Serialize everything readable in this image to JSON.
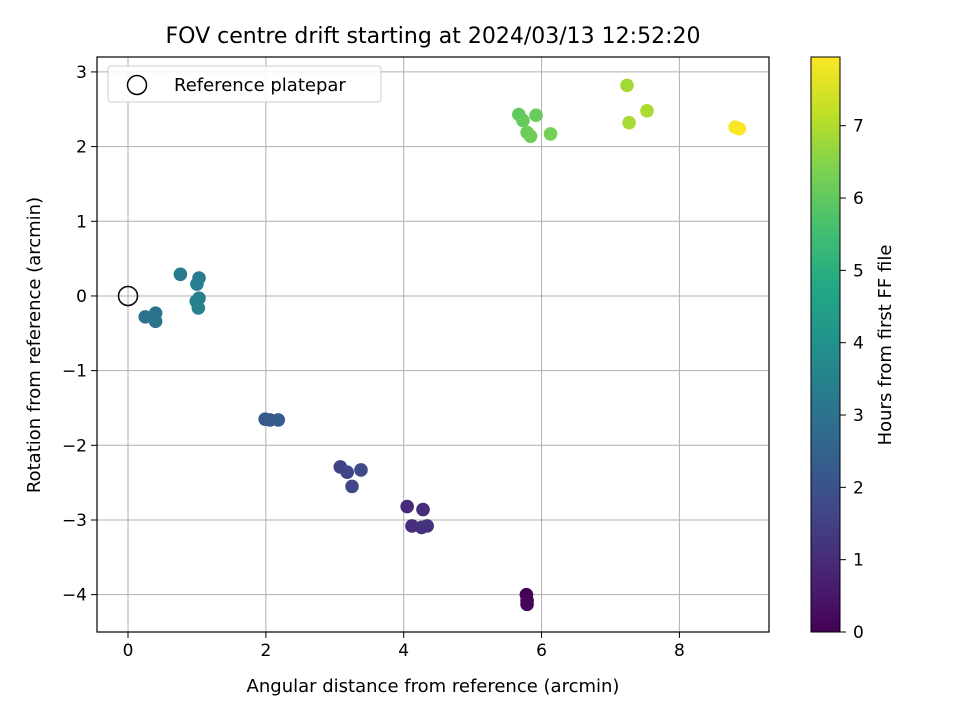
{
  "chart_data": {
    "type": "scatter",
    "title": "FOV centre drift starting at 2024/03/13 12:52:20",
    "xlabel": "Angular distance from reference (arcmin)",
    "ylabel": "Rotation from reference (arcmin)",
    "xlim": [
      -0.45,
      9.3
    ],
    "ylim": [
      -4.5,
      3.2
    ],
    "xticks": [
      0,
      2,
      4,
      6,
      8
    ],
    "yticks": [
      3,
      2,
      1,
      0,
      -1,
      -2,
      -3,
      -4
    ],
    "grid": true,
    "legend": {
      "placement": "upper-left",
      "label": "Reference platepar"
    },
    "reference_point": {
      "x": 0,
      "y": 0
    },
    "colorbar": {
      "label": "Hours from first FF file",
      "colormap": "viridis",
      "range": [
        0,
        7.95
      ],
      "ticks": [
        0,
        1,
        2,
        3,
        4,
        5,
        6,
        7
      ]
    },
    "points": [
      {
        "x": 5.78,
        "y": -4.0,
        "hours": 0.0
      },
      {
        "x": 5.79,
        "y": -4.08,
        "hours": 0.05
      },
      {
        "x": 5.79,
        "y": -4.13,
        "hours": 0.1
      },
      {
        "x": 4.05,
        "y": -2.82,
        "hours": 0.95
      },
      {
        "x": 4.28,
        "y": -2.86,
        "hours": 1.0
      },
      {
        "x": 4.12,
        "y": -3.08,
        "hours": 1.05
      },
      {
        "x": 4.26,
        "y": -3.1,
        "hours": 1.1
      },
      {
        "x": 4.34,
        "y": -3.08,
        "hours": 1.15
      },
      {
        "x": 3.08,
        "y": -2.29,
        "hours": 1.55
      },
      {
        "x": 3.18,
        "y": -2.36,
        "hours": 1.6
      },
      {
        "x": 3.25,
        "y": -2.55,
        "hours": 1.65
      },
      {
        "x": 3.38,
        "y": -2.33,
        "hours": 1.7
      },
      {
        "x": 1.99,
        "y": -1.65,
        "hours": 2.2
      },
      {
        "x": 2.06,
        "y": -1.66,
        "hours": 2.25
      },
      {
        "x": 2.18,
        "y": -1.66,
        "hours": 2.3
      },
      {
        "x": 0.25,
        "y": -0.28,
        "hours": 2.95
      },
      {
        "x": 0.4,
        "y": -0.23,
        "hours": 3.0
      },
      {
        "x": 0.4,
        "y": -0.34,
        "hours": 3.05
      },
      {
        "x": 0.76,
        "y": 0.29,
        "hours": 3.25
      },
      {
        "x": 1.03,
        "y": 0.24,
        "hours": 3.3
      },
      {
        "x": 1.0,
        "y": 0.16,
        "hours": 3.35
      },
      {
        "x": 0.99,
        "y": -0.07,
        "hours": 3.4
      },
      {
        "x": 1.03,
        "y": -0.03,
        "hours": 3.45
      },
      {
        "x": 1.02,
        "y": -0.16,
        "hours": 3.5
      },
      {
        "x": 5.67,
        "y": 2.43,
        "hours": 6.0
      },
      {
        "x": 5.73,
        "y": 2.35,
        "hours": 6.05
      },
      {
        "x": 5.92,
        "y": 2.42,
        "hours": 6.1
      },
      {
        "x": 5.79,
        "y": 2.19,
        "hours": 6.15
      },
      {
        "x": 5.84,
        "y": 2.14,
        "hours": 6.2
      },
      {
        "x": 6.13,
        "y": 2.17,
        "hours": 6.25
      },
      {
        "x": 7.24,
        "y": 2.82,
        "hours": 6.85
      },
      {
        "x": 7.27,
        "y": 2.32,
        "hours": 6.9
      },
      {
        "x": 7.53,
        "y": 2.48,
        "hours": 6.95
      },
      {
        "x": 8.81,
        "y": 2.26,
        "hours": 7.9
      },
      {
        "x": 8.87,
        "y": 2.24,
        "hours": 7.95
      }
    ]
  }
}
